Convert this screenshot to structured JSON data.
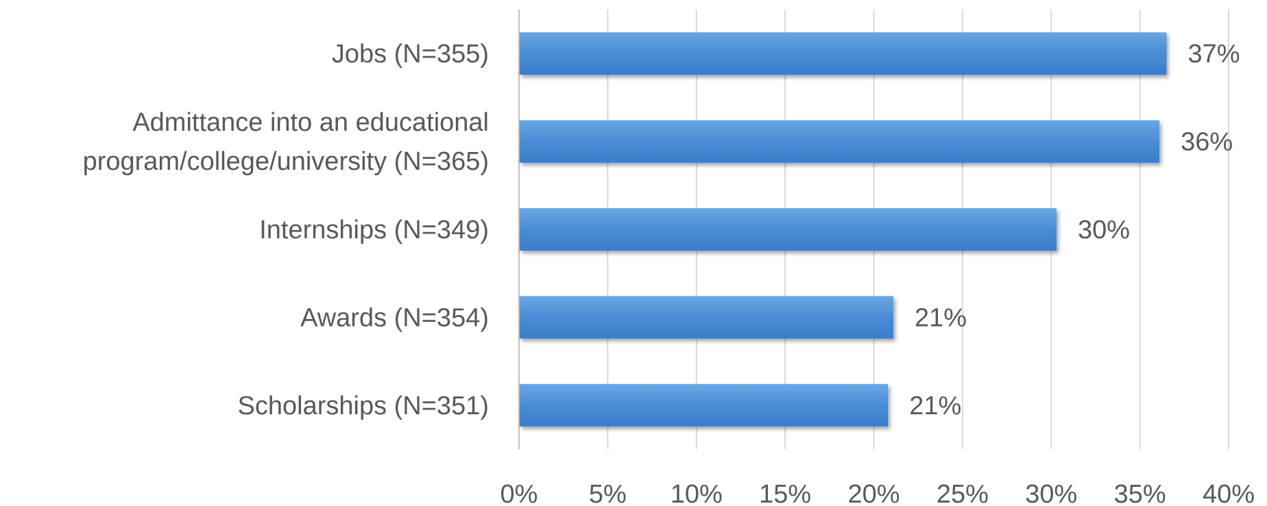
{
  "chart_data": {
    "type": "bar",
    "orientation": "horizontal",
    "title": "",
    "xlabel": "",
    "ylabel": "",
    "xlim": [
      0,
      40
    ],
    "x_ticks": [
      "0%",
      "5%",
      "10%",
      "15%",
      "20%",
      "25%",
      "30%",
      "35%",
      "40%"
    ],
    "x_tick_values": [
      0,
      5,
      10,
      15,
      20,
      25,
      30,
      35,
      40
    ],
    "grid": "vertical",
    "legend": "none",
    "bar_color": "#4A8CD5",
    "categories": [
      [
        "Jobs (N=355)"
      ],
      [
        "Admittance into an educational",
        "program/college/university (N=365)"
      ],
      [
        "Internships (N=349)"
      ],
      [
        "Awards (N=354)"
      ],
      [
        "Scholarships (N=351)"
      ]
    ],
    "values": [
      36.5,
      36.1,
      30.3,
      21.1,
      20.8
    ],
    "data_labels": [
      "37%",
      "36%",
      "30%",
      "21%",
      "21%"
    ]
  }
}
